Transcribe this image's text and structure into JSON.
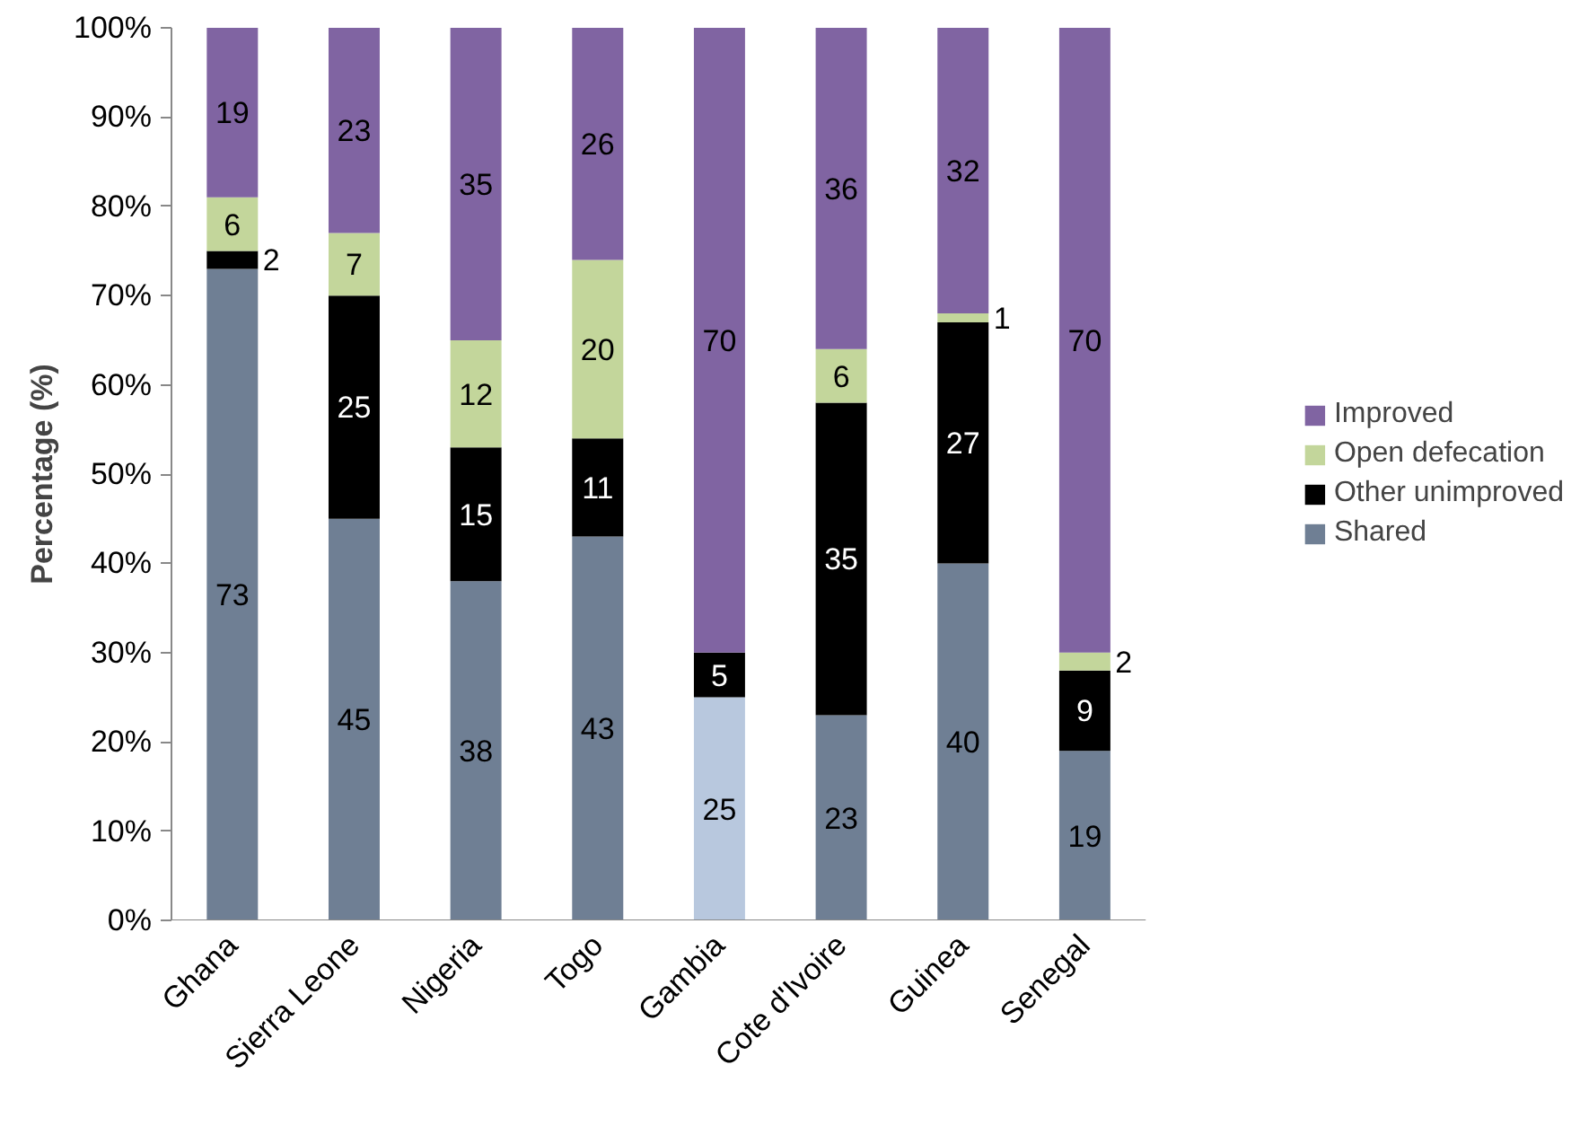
{
  "chart_data": {
    "type": "bar",
    "stacked": true,
    "ylabel": "Percentage (%)",
    "categories": [
      "Ghana",
      "Sierra Leone",
      "Nigeria",
      "Togo",
      "Gambia",
      "Cote d'Ivoire",
      "Guinea",
      "Senegal"
    ],
    "series": [
      {
        "name": "Shared",
        "color": "#6f7f94",
        "colors": [
          null,
          null,
          null,
          null,
          "#b8c8de",
          null,
          null,
          null
        ],
        "values": [
          73,
          45,
          38,
          43,
          25,
          23,
          40,
          19
        ]
      },
      {
        "name": "Other unimproved",
        "color": "#000000",
        "values": [
          2,
          25,
          15,
          11,
          5,
          35,
          27,
          9
        ]
      },
      {
        "name": "Open defecation",
        "color": "#c3d69b",
        "values": [
          6,
          7,
          12,
          20,
          null,
          6,
          1,
          2
        ]
      },
      {
        "name": "Improved",
        "color": "#8064a2",
        "values": [
          19,
          23,
          35,
          26,
          70,
          36,
          32,
          70
        ]
      }
    ],
    "ylim": [
      0,
      100
    ],
    "yticks": [
      {
        "value": 0,
        "label": "0%"
      },
      {
        "value": 10,
        "label": "10%"
      },
      {
        "value": 20,
        "label": "20%"
      },
      {
        "value": 30,
        "label": "30%"
      },
      {
        "value": 40,
        "label": "40%"
      },
      {
        "value": 50,
        "label": "50%"
      },
      {
        "value": 60,
        "label": "60%"
      },
      {
        "value": 70,
        "label": "70%"
      },
      {
        "value": 80,
        "label": "80%"
      },
      {
        "value": 90,
        "label": "90%"
      },
      {
        "value": 100,
        "label": "100%"
      }
    ],
    "data_labels": true,
    "legend": "right",
    "grid": false
  }
}
